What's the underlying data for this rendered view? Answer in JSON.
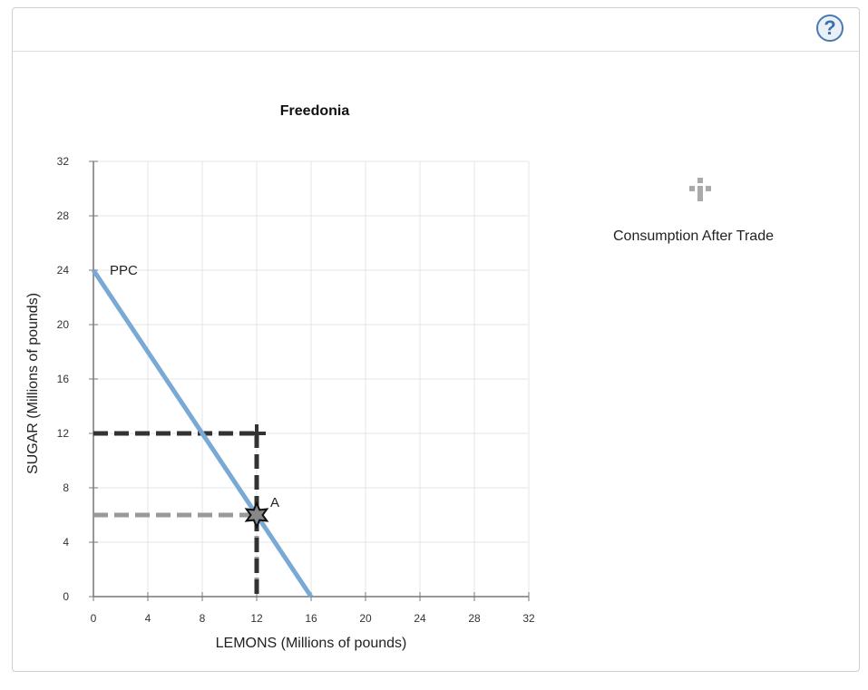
{
  "help_icon": {
    "label": "?",
    "name": "help-icon"
  },
  "legend": {
    "label": "Consumption After Trade",
    "icon": "plus-marker-icon",
    "color": "#aaaaaa"
  },
  "chart_data": {
    "type": "line",
    "title": "Freedonia",
    "xlabel": "LEMONS (Millions of pounds)",
    "ylabel": "SUGAR (Millions of pounds)",
    "xlim": [
      0,
      32
    ],
    "ylim": [
      0,
      32
    ],
    "xticks": [
      0,
      4,
      8,
      12,
      16,
      20,
      24,
      28,
      32
    ],
    "yticks": [
      0,
      4,
      8,
      12,
      16,
      20,
      24,
      28,
      32
    ],
    "grid": true,
    "series": [
      {
        "name": "PPC",
        "x": [
          0,
          16
        ],
        "y": [
          24,
          0
        ],
        "color": "#7aa9d6"
      }
    ],
    "points": [
      {
        "label": "A",
        "x": 12,
        "y": 6,
        "marker": "star",
        "color": "#888888"
      },
      {
        "label": "",
        "x": 12,
        "y": 12,
        "marker": "plus",
        "color": "#333333"
      }
    ],
    "guides": [
      {
        "x": 12,
        "y": 6,
        "color": "#999999"
      },
      {
        "x": 12,
        "y": 12,
        "color": "#333333"
      }
    ]
  }
}
